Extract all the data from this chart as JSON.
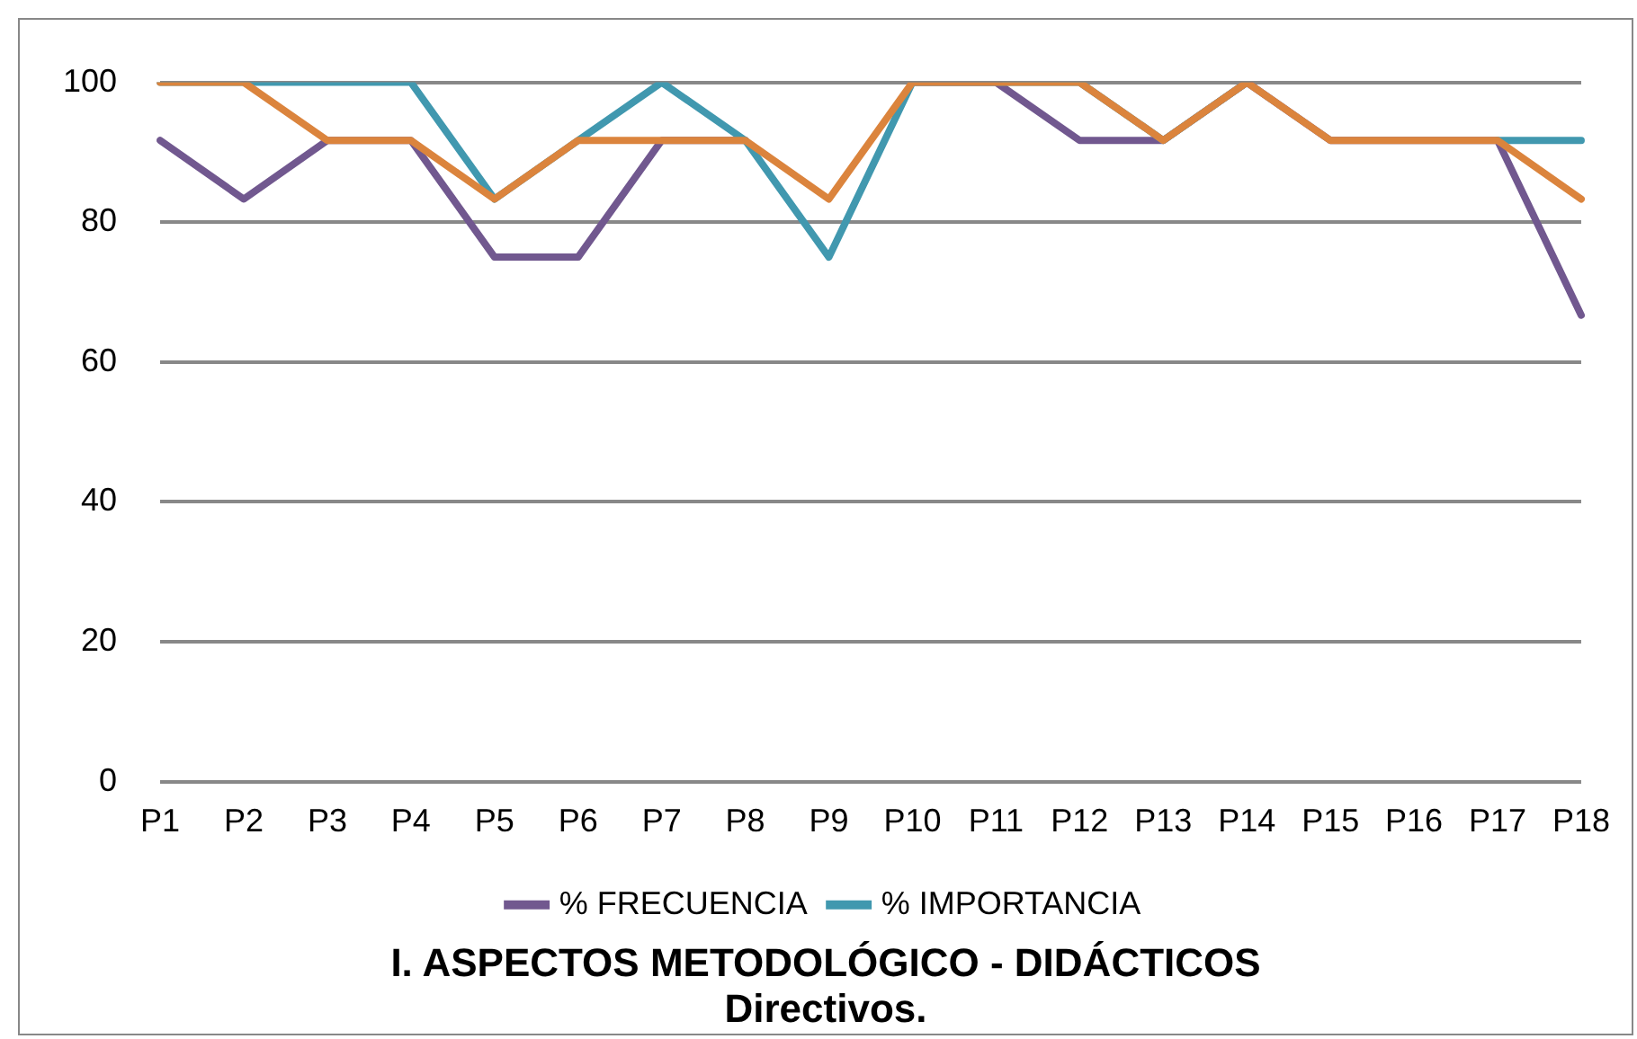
{
  "chart_data": {
    "type": "line",
    "title": "I. ASPECTOS METODOLÓGICO - DIDÁCTICOS\nDirectivos.",
    "categories": [
      "P1",
      "P2",
      "P3",
      "P4",
      "P5",
      "P6",
      "P7",
      "P8",
      "P9",
      "P10",
      "P11",
      "P12",
      "P13",
      "P14",
      "P15",
      "P16",
      "P17",
      "P18"
    ],
    "series": [
      {
        "name": "% FRECUENCIA",
        "color": "#71588f",
        "values": [
          91.7,
          83.3,
          91.7,
          91.7,
          75,
          75,
          91.7,
          91.7,
          null,
          100,
          100,
          91.7,
          91.7,
          100,
          91.7,
          91.7,
          91.7,
          66.7
        ]
      },
      {
        "name": "% IMPORTANCIA",
        "color": "#4198af",
        "values": [
          100,
          100,
          100,
          100,
          83.3,
          91.7,
          100,
          91.7,
          75,
          100,
          100,
          100,
          91.7,
          100,
          null,
          null,
          91.7,
          91.7
        ]
      },
      {
        "color": "#db843d",
        "values": [
          100,
          100,
          91.7,
          91.7,
          83.3,
          91.7,
          91.7,
          91.7,
          83.3,
          100,
          100,
          100,
          91.7,
          100,
          91.7,
          91.7,
          91.7,
          83.3
        ]
      }
    ],
    "ylim": [
      0,
      100
    ],
    "yticks": [
      0,
      20,
      40,
      60,
      80,
      100
    ],
    "grid": "y",
    "legend": "bottom",
    "marker": "none",
    "line_style": "solid"
  }
}
